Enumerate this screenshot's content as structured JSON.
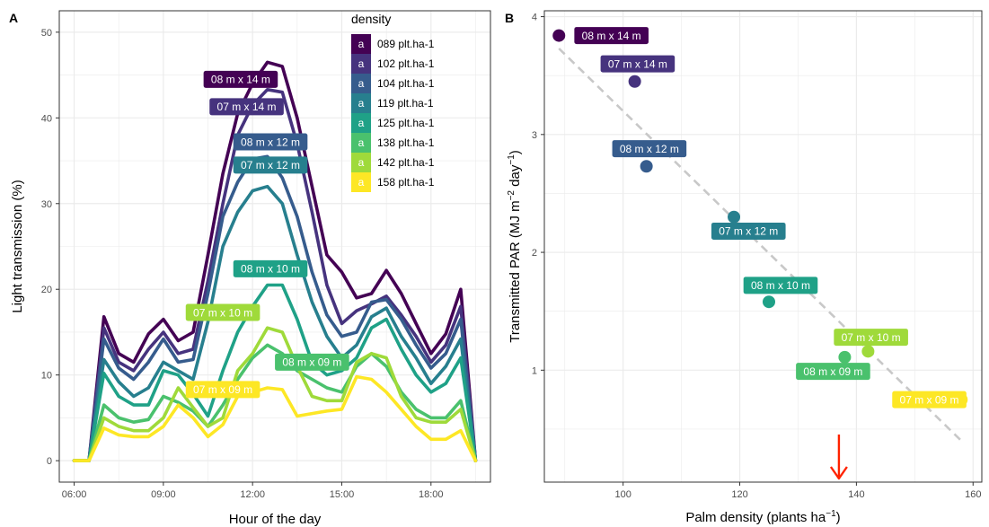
{
  "colors": {
    "d089": "#440154",
    "d102": "#46337e",
    "d104": "#365c8d",
    "d119": "#277f8e",
    "d125": "#1fa187",
    "d138": "#4ac16d",
    "d142": "#9fda3a",
    "d158": "#fde725",
    "trend": "#c8c8c8",
    "arrow": "#ff2200",
    "grid": "#ebebeb",
    "panel_border": "#333333"
  },
  "chart_data": [
    {
      "type": "line",
      "panel": "A",
      "xlabel": "Hour of the day",
      "ylabel": "Light transmission (%)",
      "xlim": [
        5.5,
        20.0
      ],
      "ylim": [
        -2.5,
        52.5
      ],
      "x_ticks": [
        6,
        9,
        12,
        15,
        18
      ],
      "x_tick_labels": [
        "06:00",
        "09:00",
        "12:00",
        "15:00",
        "18:00"
      ],
      "y_ticks": [
        0,
        10,
        20,
        30,
        40,
        50
      ],
      "grid": true,
      "x": [
        6,
        6.5,
        7,
        7.5,
        8,
        8.5,
        9,
        9.5,
        10,
        10.5,
        11,
        11.5,
        12,
        12.5,
        13,
        13.5,
        14,
        14.5,
        15,
        15.5,
        16,
        16.5,
        17,
        17.5,
        18,
        18.5,
        19,
        19.5
      ],
      "legend": {
        "title": "density",
        "position": "top-right",
        "key_glyph": "a",
        "entries": [
          "089 plt.ha-1",
          "102 plt.ha-1",
          "104 plt.ha-1",
          "119 plt.ha-1",
          "125 plt.ha-1",
          "138 plt.ha-1",
          "142 plt.ha-1",
          "158 plt.ha-1"
        ]
      },
      "series": [
        {
          "name": "089 plt.ha-1",
          "label": "08 m x 14 m",
          "label_at": [
            11.6,
            44.5
          ],
          "values": [
            0,
            0,
            16.8,
            12.5,
            11.5,
            14.8,
            16.5,
            14,
            15,
            24,
            33.5,
            40.5,
            44,
            46.5,
            46,
            40,
            32,
            24,
            22,
            19,
            19.5,
            22.2,
            19.5,
            16,
            12.5,
            14.8,
            20,
            0
          ]
        },
        {
          "name": "102 plt.ha-1",
          "label": "07 m x 14 m",
          "label_at": [
            11.8,
            41.3
          ],
          "values": [
            0,
            0,
            15.5,
            11.5,
            10.5,
            13,
            15,
            12.5,
            13,
            21,
            30,
            38,
            41.5,
            43.3,
            43,
            37,
            29,
            20.5,
            16,
            17.5,
            18.3,
            19.2,
            17,
            14.5,
            11.5,
            13.5,
            18,
            0
          ]
        },
        {
          "name": "104 plt.ha-1",
          "label": "08 m x 12 m",
          "label_at": [
            12.6,
            37.2
          ],
          "values": [
            0,
            0,
            14.2,
            10.8,
            9.5,
            11.5,
            14.2,
            11.5,
            11.8,
            19.5,
            28.5,
            32.5,
            35.2,
            35.5,
            33,
            28.5,
            22,
            17,
            14.5,
            15,
            18.5,
            18.8,
            16.5,
            13.5,
            10.8,
            12.5,
            16.5,
            0
          ]
        },
        {
          "name": "119 plt.ha-1",
          "label": "07 m x 12 m",
          "label_at": [
            12.6,
            34.5
          ],
          "values": [
            0,
            0,
            11.8,
            9.2,
            7.5,
            8.5,
            11.5,
            10.5,
            9.5,
            16.2,
            25,
            29,
            31.5,
            32,
            30,
            24,
            18.5,
            14.5,
            12,
            13.5,
            16.8,
            17.8,
            14.5,
            12,
            9,
            11,
            14.2,
            0
          ]
        },
        {
          "name": "125 plt.ha-1",
          "label": "08 m x 10 m",
          "label_at": [
            12.6,
            22.4
          ],
          "values": [
            0,
            0,
            10.2,
            7.5,
            6.5,
            6.5,
            10.5,
            10,
            7.8,
            5.2,
            10.5,
            15,
            18,
            20.5,
            20.5,
            16.5,
            11.5,
            10,
            10.5,
            12,
            15.5,
            16.5,
            13,
            10,
            8,
            9,
            12,
            0
          ]
        },
        {
          "name": "138 plt.ha-1",
          "label": "08 m x 09 m",
          "label_at": [
            14.0,
            11.5
          ],
          "values": [
            0,
            0,
            6.5,
            5,
            4.5,
            4.8,
            7.5,
            6.8,
            5.8,
            4,
            6.5,
            9.5,
            12,
            13.5,
            12.5,
            10.5,
            9.5,
            8.5,
            8,
            11,
            12.5,
            11,
            8,
            6,
            5,
            5,
            7,
            0
          ]
        },
        {
          "name": "142 plt.ha-1",
          "label": "07 m x 10 m",
          "label_at": [
            11.0,
            17.3
          ],
          "values": [
            0,
            0,
            5,
            4,
            3.5,
            3.5,
            5,
            8.5,
            6.2,
            4,
            5,
            10.5,
            12.5,
            15.5,
            15,
            11,
            7.5,
            7,
            7,
            11.5,
            12.5,
            12,
            7.5,
            5,
            4.5,
            4.5,
            6,
            0
          ]
        },
        {
          "name": "158 plt.ha-1",
          "label": "07 m x 09 m",
          "label_at": [
            11.0,
            8.3
          ],
          "values": [
            0,
            0,
            3.8,
            3,
            2.8,
            2.8,
            4,
            6.5,
            5,
            2.8,
            4.2,
            7.5,
            8,
            8.5,
            8.3,
            5.2,
            5.5,
            5.8,
            6,
            9.8,
            9.5,
            8,
            6,
            4,
            2.5,
            2.5,
            3.5,
            0
          ]
        }
      ]
    },
    {
      "type": "scatter",
      "panel": "B",
      "xlabel": "Palm density (plants ha",
      "ylabel": "Transmitted PAR (MJ m",
      "xlim": [
        86.5,
        161.5
      ],
      "ylim": [
        0.05,
        4.05
      ],
      "x_ticks": [
        100,
        120,
        140,
        160
      ],
      "y_ticks": [
        1,
        2,
        3,
        4
      ],
      "grid": true,
      "trend_line": {
        "x": [
          89,
          158
        ],
        "y": [
          3.73,
          0.4
        ],
        "style": "dashed"
      },
      "arrow_x": 137,
      "points": [
        {
          "name": "089 plt.ha-1",
          "label": "08 m x 14 m",
          "x": 89,
          "y": 3.84,
          "label_at": [
            98,
            3.84
          ]
        },
        {
          "name": "102 plt.ha-1",
          "label": "07 m x 14 m",
          "x": 102,
          "y": 3.45,
          "label_at": [
            102.5,
            3.6
          ]
        },
        {
          "name": "104 plt.ha-1",
          "label": "08 m x 12 m",
          "x": 104,
          "y": 2.73,
          "label_at": [
            104.5,
            2.88
          ]
        },
        {
          "name": "119 plt.ha-1",
          "label": "07 m x 12 m",
          "x": 119,
          "y": 2.3,
          "label_at": [
            121.5,
            2.18
          ]
        },
        {
          "name": "125 plt.ha-1",
          "label": "08 m x 10 m",
          "x": 125,
          "y": 1.58,
          "label_at": [
            127,
            1.72
          ]
        },
        {
          "name": "138 plt.ha-1",
          "label": "08 m x 09 m",
          "x": 138,
          "y": 1.11,
          "label_at": [
            136,
            0.99
          ]
        },
        {
          "name": "142 plt.ha-1",
          "label": "07 m x 10 m",
          "x": 142,
          "y": 1.16,
          "label_at": [
            142.5,
            1.28
          ]
        },
        {
          "name": "158 plt.ha-1",
          "label": "07 m x 09 m",
          "x": 158,
          "y": 0.75,
          "label_at": [
            152.5,
            0.75
          ]
        }
      ]
    }
  ]
}
